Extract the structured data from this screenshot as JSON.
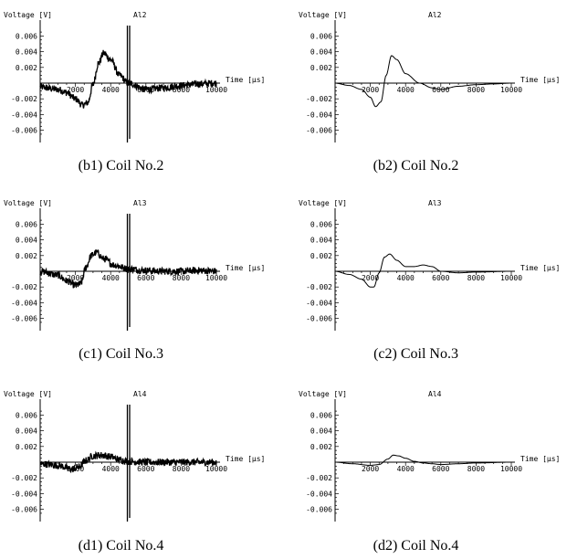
{
  "chart_data": [
    {
      "id": "b1",
      "type": "line",
      "panel_label": "Al2",
      "caption": "(b1) Coil No.2",
      "noisy": true,
      "spike_x": 5000,
      "xlabel": "Time [μs]",
      "ylabel": "Voltage [V]",
      "xlim": [
        0,
        10000
      ],
      "ylim": [
        -0.007,
        0.007
      ],
      "x_ticks": [
        2000,
        4000,
        6000,
        8000,
        10000
      ],
      "y_ticks": [
        0.006,
        0.004,
        0.002,
        -0.002,
        -0.004,
        -0.006
      ],
      "tick_labels_x": [
        "2000",
        "4000",
        "6000",
        "8000",
        "10000"
      ],
      "tick_labels_y": [
        "0.006",
        "0.004",
        "0.002",
        "-0.002",
        "-0.004",
        "-0.006"
      ],
      "series": [
        {
          "x": [
            0,
            1000,
            1500,
            2000,
            2400,
            2700,
            3000,
            3300,
            3600,
            4000,
            4500,
            5000,
            6000,
            7000,
            8000,
            9000,
            10000
          ],
          "y": [
            -0.0005,
            -0.0008,
            -0.0012,
            -0.002,
            -0.0028,
            -0.0025,
            -0.0002,
            0.0025,
            0.0038,
            0.003,
            0.001,
            0.0,
            -0.0008,
            -0.0006,
            -0.0003,
            -0.0001,
            0.0
          ]
        }
      ]
    },
    {
      "id": "b2",
      "type": "line",
      "panel_label": "Al2",
      "caption": "(b2) Coil No.2",
      "noisy": false,
      "xlabel": "Time [μs]",
      "ylabel": "Voltage [V]",
      "xlim": [
        0,
        10000
      ],
      "ylim": [
        -0.007,
        0.007
      ],
      "x_ticks": [
        2000,
        4000,
        6000,
        8000,
        10000
      ],
      "y_ticks": [
        0.006,
        0.004,
        0.002,
        -0.002,
        -0.004,
        -0.006
      ],
      "tick_labels_x": [
        "2000",
        "4000",
        "6000",
        "8000",
        "10000"
      ],
      "tick_labels_y": [
        "0.006",
        "0.004",
        "0.002",
        "-0.002",
        "-0.004",
        "-0.006"
      ],
      "series": [
        {
          "x": [
            0,
            800,
            1500,
            2000,
            2300,
            2600,
            2900,
            3200,
            3500,
            4000,
            4800,
            5500,
            6000,
            7000,
            8000,
            9000,
            10000
          ],
          "y": [
            0.0,
            -0.0003,
            -0.0008,
            -0.0018,
            -0.003,
            -0.0024,
            0.001,
            0.0035,
            0.003,
            0.0012,
            0.0,
            -0.0006,
            -0.0008,
            -0.0004,
            -0.0002,
            -0.0001,
            0.0
          ]
        }
      ]
    },
    {
      "id": "c1",
      "type": "line",
      "panel_label": "Al3",
      "caption": "(c1) Coil No.3",
      "noisy": true,
      "spike_x": 5000,
      "xlabel": "Time [μs]",
      "ylabel": "Voltage [V]",
      "xlim": [
        0,
        10000
      ],
      "ylim": [
        -0.007,
        0.007
      ],
      "x_ticks": [
        2000,
        4000,
        6000,
        8000,
        10000
      ],
      "y_ticks": [
        0.006,
        0.004,
        0.002,
        -0.002,
        -0.004,
        -0.006
      ],
      "tick_labels_x": [
        "2000",
        "4000",
        "6000",
        "8000",
        "10000"
      ],
      "tick_labels_y": [
        "0.006",
        "0.004",
        "0.002",
        "-0.002",
        "-0.004",
        "-0.006"
      ],
      "series": [
        {
          "x": [
            0,
            1000,
            1500,
            2000,
            2300,
            2600,
            2900,
            3200,
            3600,
            4200,
            5000,
            6000,
            7000,
            8000,
            9000,
            10000
          ],
          "y": [
            0.0,
            -0.0005,
            -0.0012,
            -0.0018,
            -0.0016,
            0.0005,
            0.002,
            0.0024,
            0.0016,
            0.0008,
            0.0003,
            0.0001,
            0.0,
            0.0,
            0.0001,
            0.0
          ]
        }
      ]
    },
    {
      "id": "c2",
      "type": "line",
      "panel_label": "Al3",
      "caption": "(c2) Coil No.3",
      "noisy": false,
      "xlabel": "Time [μs]",
      "ylabel": "Voltage [V]",
      "xlim": [
        0,
        10000
      ],
      "ylim": [
        -0.007,
        0.007
      ],
      "x_ticks": [
        2000,
        4000,
        6000,
        8000,
        10000
      ],
      "y_ticks": [
        0.006,
        0.004,
        0.002,
        -0.002,
        -0.004,
        -0.006
      ],
      "tick_labels_x": [
        "2000",
        "4000",
        "6000",
        "8000",
        "10000"
      ],
      "tick_labels_y": [
        "0.006",
        "0.004",
        "0.002",
        "-0.002",
        "-0.004",
        "-0.006"
      ],
      "series": [
        {
          "x": [
            0,
            800,
            1500,
            2000,
            2200,
            2500,
            2800,
            3100,
            3500,
            4000,
            4500,
            5000,
            5500,
            6000,
            7000,
            8000,
            10000
          ],
          "y": [
            0.0,
            -0.0004,
            -0.001,
            -0.002,
            -0.002,
            -0.0002,
            0.0018,
            0.0022,
            0.0014,
            0.0006,
            0.0006,
            0.0008,
            0.0006,
            0.0,
            -0.0002,
            -0.0001,
            0.0
          ]
        }
      ]
    },
    {
      "id": "d1",
      "type": "line",
      "panel_label": "Al4",
      "caption": "(d1) Coil No.4",
      "noisy": true,
      "spike_x": 5000,
      "xlabel": "Time [μs]",
      "ylabel": "Voltage [V]",
      "xlim": [
        0,
        10000
      ],
      "ylim": [
        -0.007,
        0.007
      ],
      "x_ticks": [
        2000,
        4000,
        6000,
        8000,
        10000
      ],
      "y_ticks": [
        0.006,
        0.004,
        0.002,
        -0.002,
        -0.004,
        -0.006
      ],
      "tick_labels_x": [
        "2000",
        "4000",
        "6000",
        "8000",
        "10000"
      ],
      "tick_labels_y": [
        "0.006",
        "0.004",
        "0.002",
        "-0.002",
        "-0.004",
        "-0.006"
      ],
      "series": [
        {
          "x": [
            0,
            1000,
            1800,
            2200,
            2600,
            3000,
            3500,
            4000,
            4500,
            5000,
            6000,
            7000,
            8000,
            9000,
            10000
          ],
          "y": [
            -0.0002,
            -0.0004,
            -0.0009,
            -0.0006,
            0.0002,
            0.0008,
            0.0009,
            0.0007,
            0.0003,
            0.0001,
            0.0,
            0.0,
            0.0,
            0.0,
            0.0
          ]
        }
      ]
    },
    {
      "id": "d2",
      "type": "line",
      "panel_label": "Al4",
      "caption": "(d2) Coil No.4",
      "noisy": false,
      "xlabel": "Time [μs]",
      "ylabel": "Voltage [V]",
      "xlim": [
        0,
        10000
      ],
      "ylim": [
        -0.007,
        0.007
      ],
      "x_ticks": [
        2000,
        4000,
        6000,
        8000,
        10000
      ],
      "y_ticks": [
        0.006,
        0.004,
        0.002,
        -0.002,
        -0.004,
        -0.006
      ],
      "tick_labels_x": [
        "2000",
        "4000",
        "6000",
        "8000",
        "10000"
      ],
      "tick_labels_y": [
        "0.006",
        "0.004",
        "0.002",
        "-0.002",
        "-0.004",
        "-0.006"
      ],
      "series": [
        {
          "x": [
            0,
            1000,
            2000,
            2500,
            3000,
            3300,
            3600,
            4000,
            4500,
            5000,
            5500,
            6000,
            7000,
            8000,
            10000
          ],
          "y": [
            0.0,
            -0.0002,
            -0.0004,
            -0.0003,
            0.0004,
            0.0009,
            0.0008,
            0.0005,
            0.0001,
            -0.0001,
            -0.0002,
            -0.0003,
            -0.0002,
            -0.0001,
            0.0
          ]
        }
      ]
    }
  ]
}
